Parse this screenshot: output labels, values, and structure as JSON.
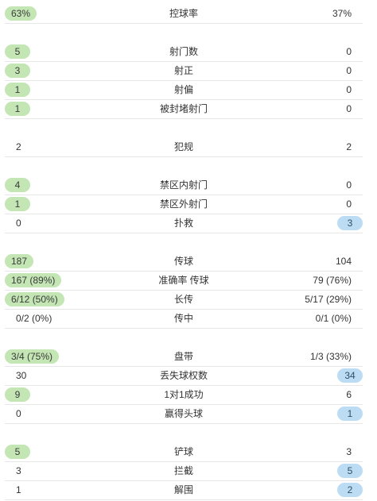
{
  "colors": {
    "left_highlight": "#c3e6b4",
    "right_highlight": "#bcdcf3",
    "divider": "#e6e6e6"
  },
  "rows": [
    {
      "label": "控球率",
      "left": "63%",
      "right": "37%",
      "winner": "left"
    },
    {
      "label": "射门数",
      "left": "5",
      "right": "0",
      "winner": "left"
    },
    {
      "label": "射正",
      "left": "3",
      "right": "0",
      "winner": "left"
    },
    {
      "label": "射偏",
      "left": "1",
      "right": "0",
      "winner": "left"
    },
    {
      "label": "被封堵射门",
      "left": "1",
      "right": "0",
      "winner": "left"
    },
    {
      "label": "犯规",
      "left": "2",
      "right": "2",
      "winner": "none"
    },
    {
      "label": "禁区内射门",
      "left": "4",
      "right": "0",
      "winner": "left"
    },
    {
      "label": "禁区外射门",
      "left": "1",
      "right": "0",
      "winner": "left"
    },
    {
      "label": "扑救",
      "left": "0",
      "right": "3",
      "winner": "right"
    },
    {
      "label": "传球",
      "left": "187",
      "right": "104",
      "winner": "left"
    },
    {
      "label": "准确率 传球",
      "left": "167 (89%)",
      "right": "79 (76%)",
      "winner": "left"
    },
    {
      "label": "长传",
      "left": "6/12 (50%)",
      "right": "5/17 (29%)",
      "winner": "left"
    },
    {
      "label": "传中",
      "left": "0/2 (0%)",
      "right": "0/1 (0%)",
      "winner": "none"
    },
    {
      "label": "盘带",
      "left": "3/4 (75%)",
      "right": "1/3 (33%)",
      "winner": "left"
    },
    {
      "label": "丢失球权数",
      "left": "30",
      "right": "34",
      "winner": "right"
    },
    {
      "label": "1对1成功",
      "left": "9",
      "right": "6",
      "winner": "left"
    },
    {
      "label": "赢得头球",
      "left": "0",
      "right": "1",
      "winner": "right"
    },
    {
      "label": "铲球",
      "left": "5",
      "right": "3",
      "winner": "left"
    },
    {
      "label": "拦截",
      "left": "3",
      "right": "5",
      "winner": "right"
    },
    {
      "label": "解围",
      "left": "1",
      "right": "2",
      "winner": "right"
    }
  ]
}
